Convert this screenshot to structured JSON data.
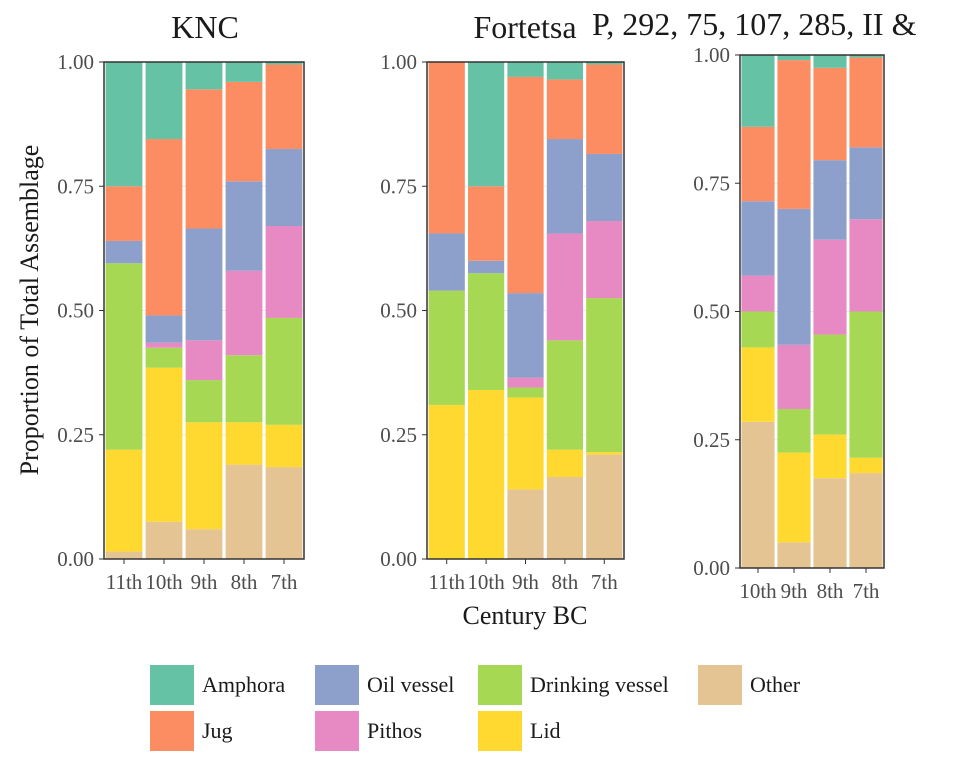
{
  "y_axis_title": "Proportion of Total Assemblage",
  "x_axis_title": "Century BC",
  "colors": {
    "Amphora": "#66c2a5",
    "Jug": "#fc8d62",
    "Oil vessel": "#8da0cb",
    "Pithos": "#e78ac3",
    "Drinking vessel": "#a6d854",
    "Lid": "#ffd92f",
    "Other": "#e5c494"
  },
  "legend": [
    {
      "label": "Amphora",
      "color": "#66c2a5"
    },
    {
      "label": "Oil vessel",
      "color": "#8da0cb"
    },
    {
      "label": "Drinking vessel",
      "color": "#a6d854"
    },
    {
      "label": "Other",
      "color": "#e5c494"
    },
    {
      "label": "Jug",
      "color": "#fc8d62"
    },
    {
      "label": "Pithos",
      "color": "#e78ac3"
    },
    {
      "label": "Lid",
      "color": "#ffd92f"
    }
  ],
  "chart_data": [
    {
      "type": "bar",
      "title": "KNC",
      "categories": [
        "11th",
        "10th",
        "9th",
        "8th",
        "7th"
      ],
      "ylim": [
        0,
        1
      ],
      "yticks": [
        "0.00",
        "0.25",
        "0.50",
        "0.75",
        "1.00"
      ],
      "stack_order_bottom_to_top": [
        "Other",
        "Lid",
        "Drinking vessel",
        "Pithos",
        "Oil vessel",
        "Jug",
        "Amphora"
      ],
      "series": [
        {
          "name": "Other",
          "values": [
            0.015,
            0.075,
            0.06,
            0.19,
            0.185
          ]
        },
        {
          "name": "Lid",
          "values": [
            0.205,
            0.31,
            0.215,
            0.085,
            0.085
          ]
        },
        {
          "name": "Drinking vessel",
          "values": [
            0.375,
            0.04,
            0.085,
            0.135,
            0.215
          ]
        },
        {
          "name": "Pithos",
          "values": [
            0.0,
            0.01,
            0.08,
            0.17,
            0.185
          ]
        },
        {
          "name": "Oil vessel",
          "values": [
            0.045,
            0.055,
            0.225,
            0.18,
            0.155
          ]
        },
        {
          "name": "Jug",
          "values": [
            0.11,
            0.355,
            0.28,
            0.2,
            0.17
          ]
        },
        {
          "name": "Amphora",
          "values": [
            0.25,
            0.155,
            0.055,
            0.04,
            0.005
          ]
        }
      ]
    },
    {
      "type": "bar",
      "title": "Fortetsa",
      "categories": [
        "11th",
        "10th",
        "9th",
        "8th",
        "7th"
      ],
      "ylim": [
        0,
        1
      ],
      "yticks": [
        "0.00",
        "0.25",
        "0.50",
        "0.75",
        "1.00"
      ],
      "stack_order_bottom_to_top": [
        "Other",
        "Lid",
        "Drinking vessel",
        "Pithos",
        "Oil vessel",
        "Jug",
        "Amphora"
      ],
      "series": [
        {
          "name": "Other",
          "values": [
            0.0,
            0.0,
            0.14,
            0.165,
            0.21
          ]
        },
        {
          "name": "Lid",
          "values": [
            0.31,
            0.34,
            0.185,
            0.055,
            0.005
          ]
        },
        {
          "name": "Drinking vessel",
          "values": [
            0.23,
            0.235,
            0.02,
            0.22,
            0.31
          ]
        },
        {
          "name": "Pithos",
          "values": [
            0.0,
            0.0,
            0.02,
            0.215,
            0.155
          ]
        },
        {
          "name": "Oil vessel",
          "values": [
            0.115,
            0.025,
            0.17,
            0.19,
            0.135
          ]
        },
        {
          "name": "Jug",
          "values": [
            0.345,
            0.15,
            0.435,
            0.12,
            0.18
          ]
        },
        {
          "name": "Amphora",
          "values": [
            0.0,
            0.25,
            0.03,
            0.035,
            0.005
          ]
        }
      ]
    },
    {
      "type": "bar",
      "title": "P, 292, 75, 107, 285, II &",
      "categories": [
        "10th",
        "9th",
        "8th",
        "7th"
      ],
      "ylim": [
        0,
        1
      ],
      "yticks": [
        "0.00",
        "0.25",
        "0.50",
        "0.75",
        "1.00"
      ],
      "stack_order_bottom_to_top": [
        "Other",
        "Lid",
        "Drinking vessel",
        "Pithos",
        "Oil vessel",
        "Jug",
        "Amphora"
      ],
      "series": [
        {
          "name": "Other",
          "values": [
            0.285,
            0.05,
            0.175,
            0.185
          ]
        },
        {
          "name": "Lid",
          "values": [
            0.145,
            0.175,
            0.085,
            0.03
          ]
        },
        {
          "name": "Drinking vessel",
          "values": [
            0.07,
            0.085,
            0.195,
            0.285
          ]
        },
        {
          "name": "Pithos",
          "values": [
            0.07,
            0.125,
            0.185,
            0.18
          ]
        },
        {
          "name": "Oil vessel",
          "values": [
            0.145,
            0.265,
            0.155,
            0.14
          ]
        },
        {
          "name": "Jug",
          "values": [
            0.145,
            0.29,
            0.18,
            0.175
          ]
        },
        {
          "name": "Amphora",
          "values": [
            0.14,
            0.01,
            0.025,
            0.005
          ]
        }
      ]
    }
  ]
}
